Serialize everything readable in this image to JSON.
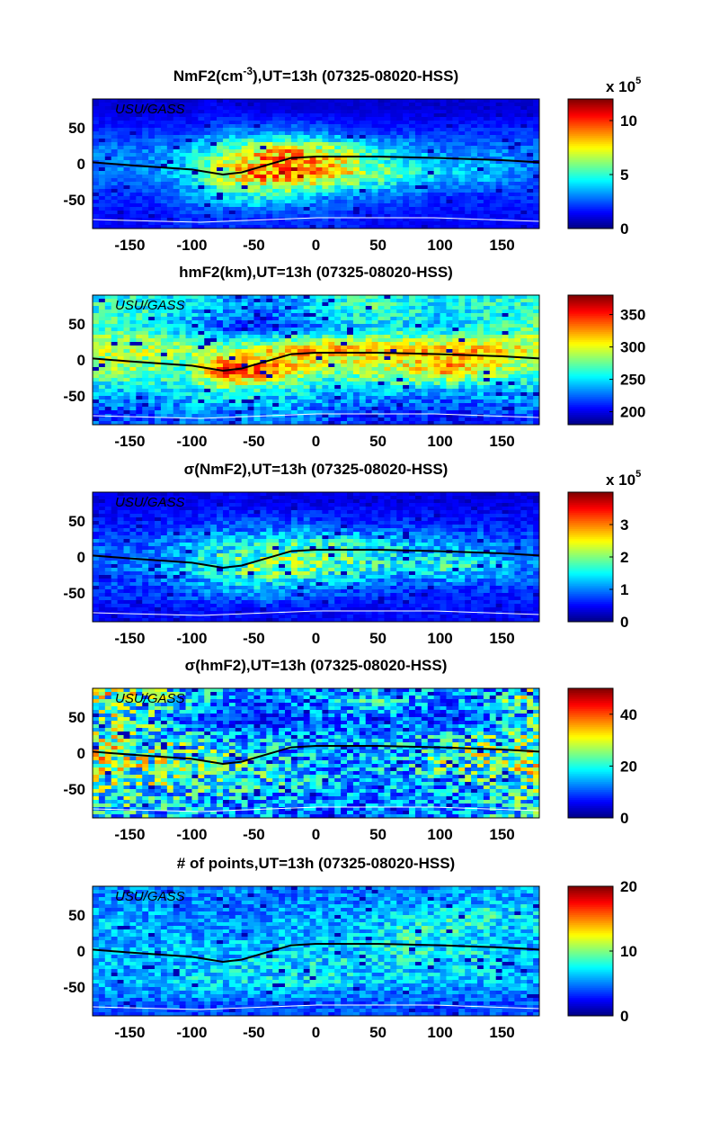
{
  "watermark": "USU/GASS",
  "chart_data": [
    {
      "type": "heatmap",
      "title_pre": "NmF2(cm",
      "title_sup": "-3",
      "title_post": "),UT=13h (07325-08020-HSS)",
      "xlim": [
        -180,
        180
      ],
      "ylim": [
        -90,
        90
      ],
      "xticks": [
        "-150",
        "-100",
        "-50",
        "0",
        "50",
        "100",
        "150"
      ],
      "yticks": [
        "50",
        "0",
        "-50"
      ],
      "colorbar": {
        "range": [
          0,
          12
        ],
        "ticks": [
          "0",
          "5",
          "10"
        ],
        "multiplier": "x 10",
        "multiplier_exp": "5",
        "colormap": "jet"
      },
      "grid_lon_centers": [
        -165,
        -135,
        -105,
        -75,
        -45,
        -15,
        15,
        45,
        75,
        105,
        135,
        165
      ],
      "grid_lat_centers": [
        75,
        45,
        15,
        -15,
        -45,
        -75
      ],
      "values": [
        [
          1,
          1,
          1,
          1.5,
          1,
          1,
          1,
          1,
          1,
          1,
          1,
          1
        ],
        [
          2,
          2,
          2,
          3,
          3,
          3,
          2.5,
          2,
          2,
          2,
          2,
          2
        ],
        [
          3,
          3,
          4,
          6,
          8,
          9,
          7,
          5,
          4,
          3,
          3,
          3
        ],
        [
          3,
          3,
          4,
          7,
          9,
          10,
          8,
          6,
          5,
          4,
          4,
          3
        ],
        [
          2,
          2,
          3,
          4,
          5,
          4,
          3,
          3,
          2.5,
          2,
          2,
          2
        ],
        [
          1.5,
          1.5,
          2,
          2,
          2,
          2,
          2,
          1.5,
          1.5,
          1.5,
          1.5,
          1.5
        ]
      ],
      "noise": 0.25
    },
    {
      "type": "heatmap",
      "title_pre": "hmF2(km),UT=13h (07325-08020-HSS)",
      "title_sup": "",
      "title_post": "",
      "xlim": [
        -180,
        180
      ],
      "ylim": [
        -90,
        90
      ],
      "xticks": [
        "-150",
        "-100",
        "-50",
        "0",
        "50",
        "100",
        "150"
      ],
      "yticks": [
        "50",
        "0",
        "-50"
      ],
      "colorbar": {
        "range": [
          180,
          380
        ],
        "ticks": [
          "200",
          "250",
          "300",
          "350"
        ],
        "multiplier": "",
        "multiplier_exp": "",
        "colormap": "jet"
      },
      "grid_lon_centers": [
        -165,
        -135,
        -105,
        -75,
        -45,
        -15,
        15,
        45,
        75,
        105,
        135,
        165
      ],
      "grid_lat_centers": [
        75,
        45,
        15,
        -15,
        -45,
        -75
      ],
      "values": [
        [
          260,
          260,
          250,
          240,
          230,
          240,
          260,
          270,
          260,
          250,
          260,
          260
        ],
        [
          270,
          260,
          240,
          220,
          210,
          220,
          240,
          250,
          250,
          240,
          260,
          270
        ],
        [
          290,
          290,
          280,
          280,
          300,
          320,
          320,
          310,
          310,
          320,
          320,
          300
        ],
        [
          290,
          280,
          270,
          350,
          340,
          300,
          280,
          290,
          300,
          320,
          300,
          280
        ],
        [
          240,
          240,
          250,
          260,
          260,
          250,
          240,
          240,
          240,
          230,
          240,
          240
        ],
        [
          220,
          220,
          230,
          230,
          230,
          230,
          220,
          210,
          210,
          210,
          210,
          220
        ]
      ],
      "noise": 0.08
    },
    {
      "type": "heatmap",
      "title_pre": "σ(NmF2),UT=13h (07325-08020-HSS)",
      "title_sup": "",
      "title_post": "",
      "xlim": [
        -180,
        180
      ],
      "ylim": [
        -90,
        90
      ],
      "xticks": [
        "-150",
        "-100",
        "-50",
        "0",
        "50",
        "100",
        "150"
      ],
      "yticks": [
        "50",
        "0",
        "-50"
      ],
      "colorbar": {
        "range": [
          0,
          4
        ],
        "ticks": [
          "0",
          "1",
          "2",
          "3"
        ],
        "multiplier": "x 10",
        "multiplier_exp": "5",
        "colormap": "jet"
      },
      "grid_lon_centers": [
        -165,
        -135,
        -105,
        -75,
        -45,
        -15,
        15,
        45,
        75,
        105,
        135,
        165
      ],
      "grid_lat_centers": [
        75,
        45,
        15,
        -15,
        -45,
        -75
      ],
      "values": [
        [
          0.4,
          0.4,
          0.4,
          0.5,
          0.4,
          0.4,
          0.4,
          0.4,
          0.4,
          0.4,
          0.4,
          0.4
        ],
        [
          0.6,
          0.6,
          0.7,
          0.8,
          0.8,
          0.9,
          0.8,
          0.7,
          0.7,
          0.6,
          0.6,
          0.6
        ],
        [
          0.9,
          0.9,
          1.2,
          1.5,
          1.6,
          1.8,
          1.8,
          1.5,
          1.3,
          1.2,
          1.1,
          0.9
        ],
        [
          0.9,
          1.0,
          1.3,
          1.8,
          2.0,
          2.2,
          1.8,
          1.6,
          1.4,
          1.6,
          1.5,
          1.0
        ],
        [
          0.7,
          0.7,
          0.9,
          1.1,
          1.2,
          1.0,
          0.9,
          0.8,
          0.7,
          0.7,
          0.7,
          0.7
        ],
        [
          0.5,
          0.5,
          0.5,
          0.5,
          0.5,
          0.5,
          0.5,
          0.5,
          0.5,
          0.5,
          0.5,
          0.5
        ]
      ],
      "noise": 0.35
    },
    {
      "type": "heatmap",
      "title_pre": "σ(hmF2),UT=13h (07325-08020-HSS)",
      "title_sup": "",
      "title_post": "",
      "xlim": [
        -180,
        180
      ],
      "ylim": [
        -90,
        90
      ],
      "xticks": [
        "-150",
        "-100",
        "-50",
        "0",
        "50",
        "100",
        "150"
      ],
      "yticks": [
        "50",
        "0",
        "-50"
      ],
      "colorbar": {
        "range": [
          0,
          50
        ],
        "ticks": [
          "0",
          "20",
          "40"
        ],
        "multiplier": "",
        "multiplier_exp": "",
        "colormap": "jet"
      },
      "grid_lon_centers": [
        -165,
        -135,
        -105,
        -75,
        -45,
        -15,
        15,
        45,
        75,
        105,
        135,
        165
      ],
      "grid_lat_centers": [
        75,
        45,
        15,
        -15,
        -45,
        -75
      ],
      "values": [
        [
          25,
          22,
          18,
          15,
          12,
          12,
          14,
          18,
          15,
          12,
          15,
          22
        ],
        [
          22,
          18,
          12,
          8,
          8,
          10,
          12,
          12,
          10,
          8,
          12,
          18
        ],
        [
          25,
          22,
          20,
          18,
          16,
          15,
          14,
          14,
          16,
          20,
          22,
          24
        ],
        [
          26,
          24,
          22,
          22,
          18,
          15,
          14,
          15,
          16,
          22,
          24,
          25
        ],
        [
          22,
          22,
          20,
          18,
          18,
          16,
          14,
          14,
          14,
          16,
          18,
          22
        ],
        [
          18,
          18,
          16,
          14,
          14,
          12,
          12,
          12,
          12,
          14,
          16,
          18
        ]
      ],
      "noise": 0.6
    },
    {
      "type": "heatmap",
      "title_pre": "# of points,UT=13h (07325-08020-HSS)",
      "title_sup": "",
      "title_post": "",
      "xlim": [
        -180,
        180
      ],
      "ylim": [
        -90,
        90
      ],
      "xticks": [
        "-150",
        "-100",
        "-50",
        "0",
        "50",
        "100",
        "150"
      ],
      "yticks": [
        "50",
        "0",
        "-50"
      ],
      "colorbar": {
        "range": [
          0,
          20
        ],
        "ticks": [
          "0",
          "10",
          "20"
        ],
        "multiplier": "",
        "multiplier_exp": "",
        "colormap": "jet"
      },
      "grid_lon_centers": [
        -165,
        -135,
        -105,
        -75,
        -45,
        -15,
        15,
        45,
        75,
        105,
        135,
        165
      ],
      "grid_lat_centers": [
        75,
        45,
        15,
        -15,
        -45,
        -75
      ],
      "values": [
        [
          5,
          5,
          5,
          5,
          5,
          5,
          5,
          5,
          5,
          5,
          6,
          6
        ],
        [
          6,
          6,
          5,
          5,
          5,
          6,
          6,
          6,
          7,
          8,
          8,
          7
        ],
        [
          6,
          6,
          6,
          6,
          6,
          6,
          6,
          7,
          8,
          8,
          7,
          6
        ],
        [
          6,
          6,
          6,
          6,
          7,
          7,
          7,
          7,
          7,
          7,
          7,
          6
        ],
        [
          6,
          6,
          7,
          7,
          7,
          7,
          7,
          6,
          6,
          6,
          6,
          6
        ],
        [
          4,
          4,
          4,
          4,
          4,
          4,
          4,
          4,
          4,
          4,
          4,
          4
        ]
      ],
      "noise": 0.35
    }
  ],
  "dip_equator": {
    "color": "#000000",
    "lon": [
      -180,
      -150,
      -100,
      -75,
      -60,
      -40,
      -20,
      0,
      50,
      100,
      150,
      180
    ],
    "lat": [
      2,
      -2,
      -8,
      -15,
      -12,
      -2,
      8,
      10,
      10,
      8,
      5,
      2
    ]
  },
  "coastline_color": "#ffffff"
}
